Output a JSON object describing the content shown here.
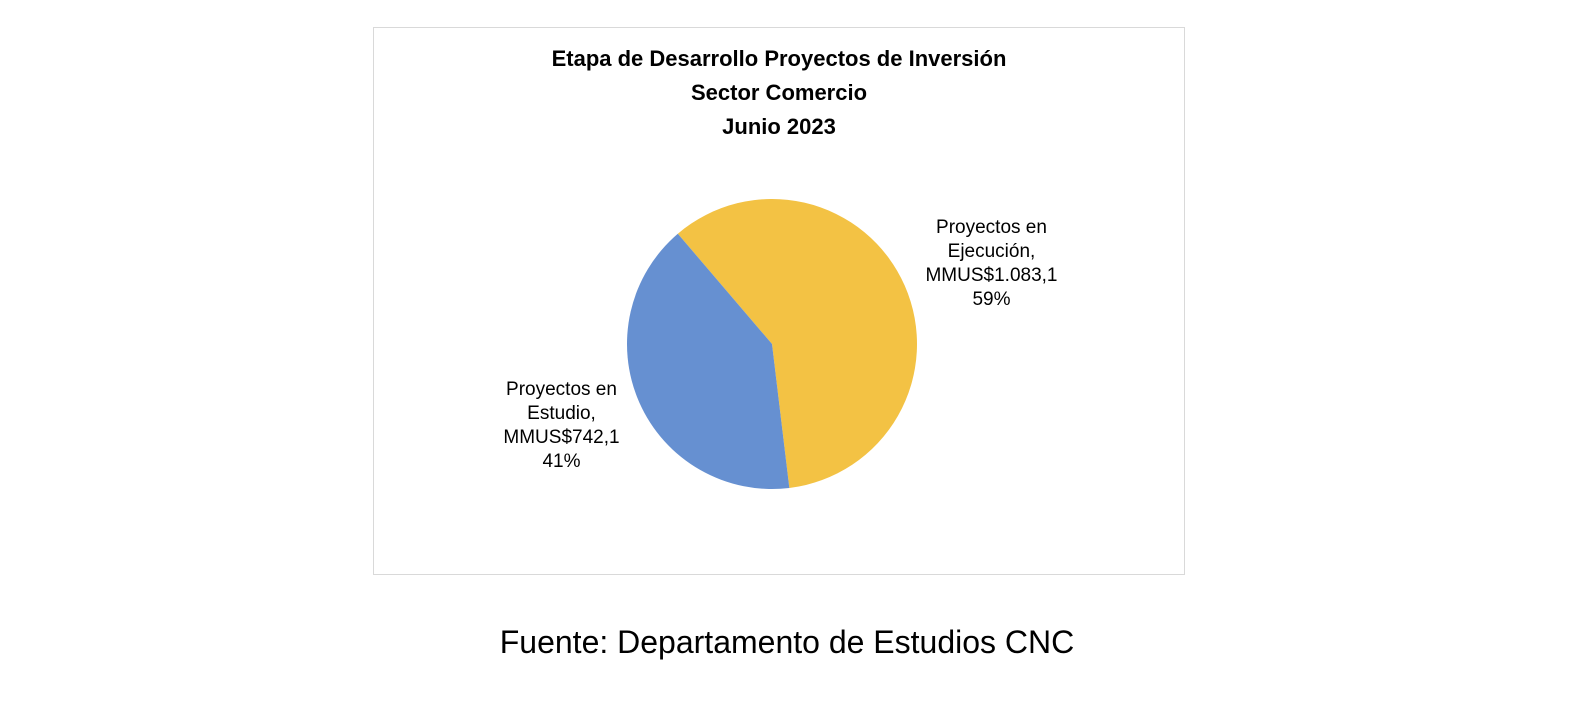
{
  "chart_data": {
    "type": "pie",
    "title_lines": [
      "Etapa de Desarrollo Proyectos de Inversión",
      "Sector Comercio",
      "Junio 2023"
    ],
    "slices": [
      {
        "label_lines": [
          "Proyectos en",
          "Ejecución,",
          "MMUS$1.083,1",
          "59%"
        ],
        "value": 1083.1,
        "percent": 59,
        "color": "#F3C244"
      },
      {
        "label_lines": [
          "Proyectos en",
          "Estudio,",
          "MMUS$742,1",
          "41%"
        ],
        "value": 742.1,
        "percent": 41,
        "color": "#6690D1"
      }
    ],
    "legend": "none"
  },
  "source": "Fuente: Departamento de Estudios CNC"
}
